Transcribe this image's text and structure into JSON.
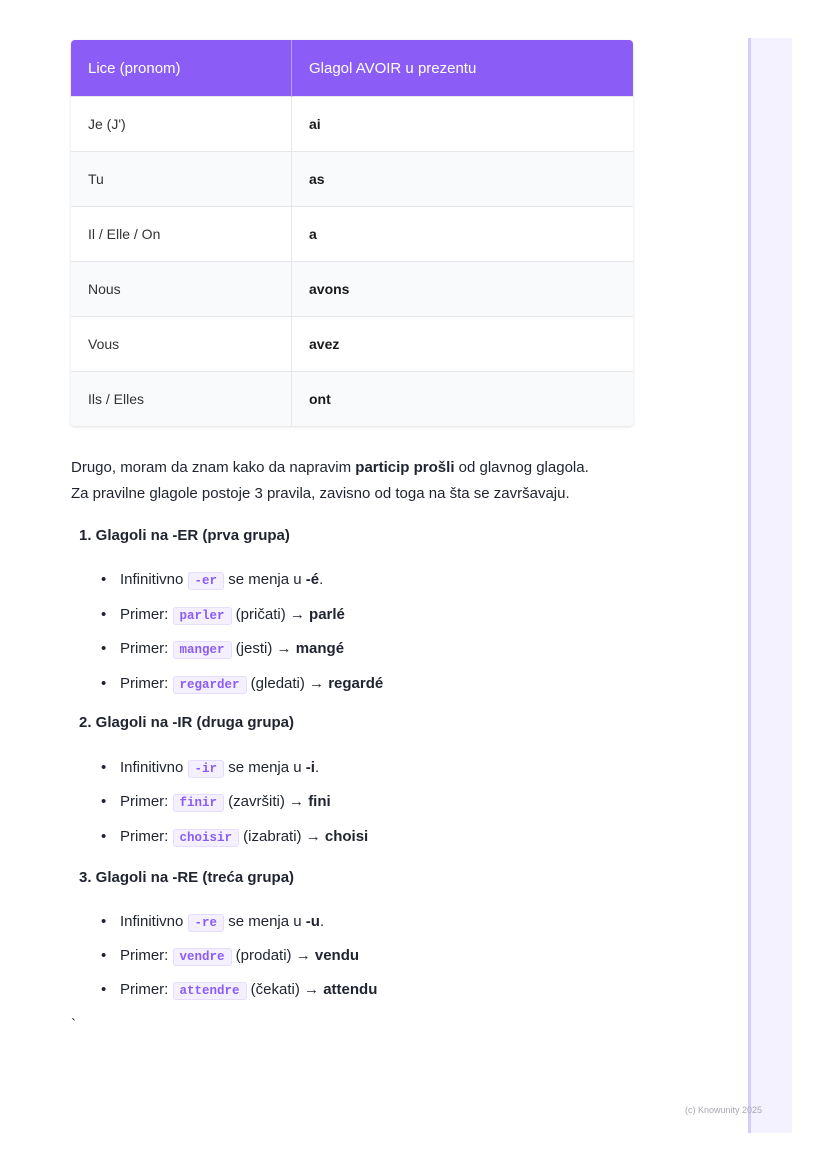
{
  "table": {
    "headers": [
      "Lice (pronom)",
      "Glagol AVOIR u prezentu"
    ],
    "rows": [
      [
        "Je (J')",
        "ai"
      ],
      [
        "Tu",
        "as"
      ],
      [
        "Il / Elle / On",
        "a"
      ],
      [
        "Nous",
        "avons"
      ],
      [
        "Vous",
        "avez"
      ],
      [
        "Ils / Elles",
        "ont"
      ]
    ]
  },
  "intro": {
    "line1_a": "Drugo, moram da znam kako da napravim ",
    "line1_b": "particip prošli",
    "line1_c": " od glavnog glagola.",
    "line2": "Za pravilne glagole postoje 3 pravila, zavisno od toga na šta se završavaju."
  },
  "groups": [
    {
      "title": "1. Glagoli na -ER (prva grupa)",
      "rule": {
        "pre": "Infinitivno ",
        "code": "-er",
        "post": " se menja u ",
        "res": "-é",
        "end": "."
      },
      "examples": [
        {
          "code": "parler",
          "meaning": " (pričati) → ",
          "res": "parlé"
        },
        {
          "code": "manger",
          "meaning": " (jesti) → ",
          "res": "mangé"
        },
        {
          "code": "regarder",
          "meaning": " (gledati) → ",
          "res": "regardé"
        }
      ]
    },
    {
      "title": "2. Glagoli na -IR (druga grupa)",
      "rule": {
        "pre": "Infinitivno ",
        "code": "-ir",
        "post": " se menja u ",
        "res": "-i",
        "end": "."
      },
      "examples": [
        {
          "code": "finir",
          "meaning": " (završiti) → ",
          "res": "fini"
        },
        {
          "code": "choisir",
          "meaning": " (izabrati) → ",
          "res": "choisi"
        }
      ]
    },
    {
      "title": "3. Glagoli na -RE (treća grupa)",
      "rule": {
        "pre": "Infinitivno ",
        "code": "-re",
        "post": " se menja u ",
        "res": "-u",
        "end": "."
      },
      "examples": [
        {
          "code": "vendre",
          "meaning": " (prodati) → ",
          "res": "vendu"
        },
        {
          "code": "attendre",
          "meaning": " (čekati) → ",
          "res": "attendu"
        }
      ]
    }
  ],
  "primer_label": "Primer: ",
  "stray": "`",
  "footer": "(c) Knowunity 2025",
  "colors": {
    "accent": "#8b5cf6",
    "sidebar": "#f5f2ff"
  }
}
